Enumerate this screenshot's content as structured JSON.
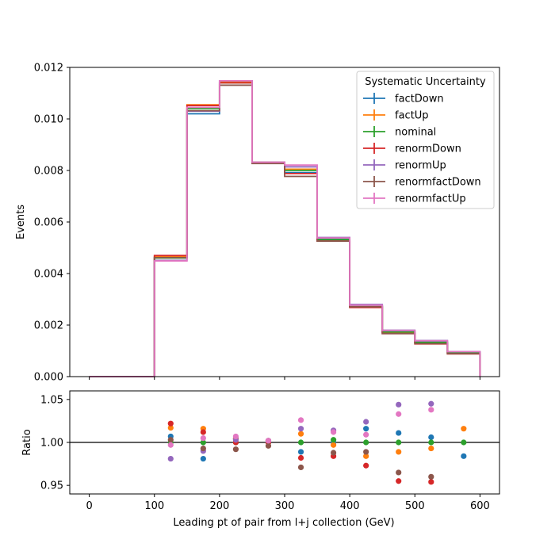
{
  "chart_data": [
    {
      "type": "line",
      "subtype": "step-histogram",
      "xlabel": "",
      "ylabel": "Events",
      "xlim": [
        -30,
        630
      ],
      "ylim": [
        0,
        0.012
      ],
      "bin_edges": [
        0,
        100,
        150,
        200,
        250,
        300,
        350,
        400,
        450,
        500,
        550,
        600
      ],
      "yticks": [
        "0.000",
        "0.002",
        "0.004",
        "0.006",
        "0.008",
        "0.010",
        "0.012"
      ],
      "legend": {
        "title": "Systematic Uncertainty",
        "placement": "top-right"
      },
      "grid": false,
      "series": [
        {
          "name": "factDown",
          "color": "#1f77b4",
          "values": [
            0,
            0.00463,
            0.0102,
            0.01148,
            0.00832,
            0.00792,
            0.00534,
            0.00275,
            0.00175,
            0.00135,
            0.00094
          ]
        },
        {
          "name": "factUp",
          "color": "#ff7f0e",
          "values": [
            0,
            0.00467,
            0.01055,
            0.01145,
            0.00832,
            0.00805,
            0.00531,
            0.00271,
            0.00171,
            0.00132,
            0.00091
          ]
        },
        {
          "name": "nominal",
          "color": "#2ca02c",
          "values": [
            0,
            0.0046,
            0.0104,
            0.0114,
            0.0083,
            0.008,
            0.00532,
            0.00273,
            0.00173,
            0.00133,
            0.00093
          ]
        },
        {
          "name": "renormDown",
          "color": "#d62728",
          "values": [
            0,
            0.0047,
            0.01052,
            0.0114,
            0.0083,
            0.00788,
            0.00526,
            0.00268,
            0.00167,
            0.00127,
            0.00088
          ]
        },
        {
          "name": "renormUp",
          "color": "#9467bd",
          "values": [
            0,
            0.00451,
            0.0103,
            0.01148,
            0.00832,
            0.00814,
            0.0054,
            0.0028,
            0.0018,
            0.0014,
            0.00097
          ]
        },
        {
          "name": "renormfactDown",
          "color": "#8c564b",
          "values": [
            0,
            0.00462,
            0.01032,
            0.01131,
            0.00827,
            0.00777,
            0.00526,
            0.00271,
            0.00167,
            0.00128,
            0.00089
          ]
        },
        {
          "name": "renormfactUp",
          "color": "#e377c2",
          "values": [
            0,
            0.00449,
            0.01045,
            0.01148,
            0.00832,
            0.00821,
            0.00538,
            0.00277,
            0.00179,
            0.00139,
            0.00097
          ]
        }
      ]
    },
    {
      "type": "scatter",
      "xlabel": "Leading pt of pair from l+j collection (GeV)",
      "ylabel": "Ratio",
      "xlim": [
        -30,
        630
      ],
      "ylim": [
        0.94,
        1.06
      ],
      "xticks": [
        "0",
        "100",
        "200",
        "300",
        "400",
        "500",
        "600"
      ],
      "yticks": [
        "0.95",
        "1.00",
        "1.05"
      ],
      "reference_line": 1.0,
      "x": [
        125,
        175,
        225,
        275,
        325,
        375,
        425,
        475,
        525,
        575
      ],
      "series": [
        {
          "name": "factDown",
          "color": "#1f77b4",
          "values": [
            1.007,
            0.981,
            1.005,
            1.002,
            0.989,
            1.0,
            1.016,
            1.011,
            1.006,
            0.984
          ]
        },
        {
          "name": "factUp",
          "color": "#ff7f0e",
          "values": [
            1.017,
            1.016,
            1.004,
            1.002,
            1.01,
            0.997,
            0.984,
            0.989,
            0.993,
            1.016
          ]
        },
        {
          "name": "nominal",
          "color": "#2ca02c",
          "values": [
            1.0,
            1.0,
            1.0,
            1.0,
            1.0,
            1.003,
            1.0,
            1.0,
            1.0,
            1.0
          ]
        },
        {
          "name": "renormDown",
          "color": "#d62728",
          "values": [
            1.022,
            1.012,
            1.0,
            1.0,
            0.982,
            0.984,
            0.973,
            0.955,
            0.954,
            null
          ]
        },
        {
          "name": "renormUp",
          "color": "#9467bd",
          "values": [
            0.981,
            0.99,
            1.003,
            1.002,
            1.016,
            1.014,
            1.024,
            1.044,
            1.045,
            null
          ]
        },
        {
          "name": "renormfactDown",
          "color": "#8c564b",
          "values": [
            1.003,
            0.993,
            0.992,
            0.996,
            0.971,
            0.988,
            0.989,
            0.965,
            0.96,
            null
          ]
        },
        {
          "name": "renormfactUp",
          "color": "#e377c2",
          "values": [
            0.997,
            1.005,
            1.007,
            1.002,
            1.026,
            1.012,
            1.009,
            1.033,
            1.038,
            null
          ]
        }
      ]
    }
  ]
}
